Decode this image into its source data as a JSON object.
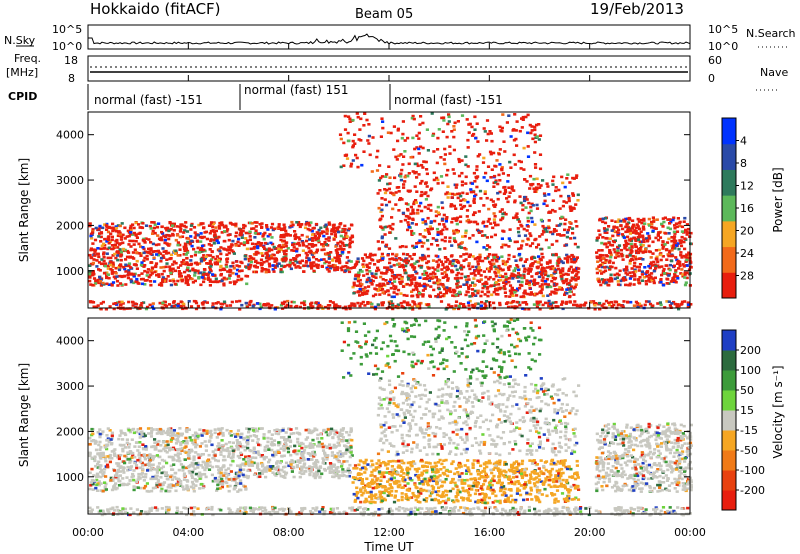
{
  "header": {
    "station": "Hokkaido (fitACF)",
    "beam": "Beam 05",
    "date": "19/Feb/2013"
  },
  "noise_panel": {
    "left_label": "N.Sky",
    "right_label": "N.Search",
    "left_ticks": [
      "10^5",
      "10^0"
    ],
    "right_ticks": [
      "10^5",
      "10^0"
    ]
  },
  "freq_panel": {
    "left_label_1": "Freq.",
    "left_label_2": "[MHz]",
    "right_label": "Nave",
    "left_ticks": [
      "18",
      "8"
    ],
    "right_ticks": [
      "60",
      "0"
    ]
  },
  "cpid_panel": {
    "label": "CPID",
    "segments": [
      "normal (fast) -151",
      "normal (fast) 151",
      "normal (fast) -151"
    ]
  },
  "chart_data": [
    {
      "type": "heatmap",
      "title": "Power",
      "ylabel": "Slant Range [km]",
      "xlabel": "Time UT",
      "x_ticks": [
        "00:00",
        "04:00",
        "08:00",
        "12:00",
        "16:00",
        "20:00",
        "00:00"
      ],
      "y_ticks": [
        "1000",
        "2000",
        "3000",
        "4000"
      ],
      "ylim": [
        180,
        4500
      ],
      "colorbar_label": "Power [dB]",
      "colorbar_ticks": [
        "4",
        "8",
        "12",
        "16",
        "20",
        "24",
        "28"
      ],
      "colorbar_colors": [
        "#0033ff",
        "#2a4aa8",
        "#2e7a5c",
        "#5cb85a",
        "#f5a623",
        "#f26a1a",
        "#e81e0e"
      ],
      "dominant_color": "#e81e0e"
    },
    {
      "type": "heatmap",
      "title": "Velocity",
      "ylabel": "Slant Range [km]",
      "xlabel": "Time UT",
      "x_ticks": [
        "00:00",
        "04:00",
        "08:00",
        "12:00",
        "16:00",
        "20:00",
        "00:00"
      ],
      "y_ticks": [
        "1000",
        "2000",
        "3000",
        "4000"
      ],
      "ylim": [
        180,
        4500
      ],
      "colorbar_label": "Velocity [m s⁻¹]",
      "colorbar_ticks": [
        "200",
        "100",
        "50",
        "15",
        "-15",
        "-50",
        "-100",
        "-200"
      ],
      "colorbar_colors": [
        "#1f3fc4",
        "#2c6b3e",
        "#3c9b3a",
        "#6ed43c",
        "#c8c8c0",
        "#f5a623",
        "#f07a17",
        "#e8410f",
        "#e81e0e"
      ],
      "dominant_color": "#c8c8c0"
    }
  ]
}
